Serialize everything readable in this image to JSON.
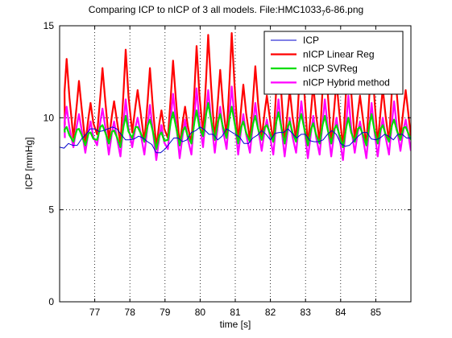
{
  "chart_data": {
    "type": "line",
    "title": "Comparing ICP to nICP of 3 all models. File:HMC1033",
    "title_subscript": "7",
    "title_suffix": "6-86.png",
    "xlabel": "time [s]",
    "ylabel": "ICP [mmHg]",
    "xlim": [
      76,
      86
    ],
    "ylim": [
      0,
      15
    ],
    "xticks": [
      "77",
      "78",
      "79",
      "80",
      "81",
      "82",
      "83",
      "84",
      "85"
    ],
    "yticks": [
      "0",
      "5",
      "10",
      "15"
    ],
    "grid": "dotted",
    "legend_position": "top-right",
    "series": [
      {
        "name": "ICP",
        "color": "#0000cc",
        "x": [
          76.0,
          76.25,
          76.5,
          76.75,
          77.0,
          77.25,
          77.5,
          77.75,
          78.0,
          78.25,
          78.5,
          78.75,
          79.0,
          79.25,
          79.5,
          79.75,
          80.0,
          80.25,
          80.5,
          80.75,
          81.0,
          81.25,
          81.5,
          81.75,
          82.0,
          82.25,
          82.5,
          82.75,
          83.0,
          83.25,
          83.5,
          83.75,
          84.0,
          84.25,
          84.5,
          84.75,
          85.0,
          85.25,
          85.5,
          85.75,
          86.0
        ],
        "y": [
          8.4,
          8.6,
          8.5,
          9.1,
          9.4,
          9.3,
          9.5,
          9.1,
          8.8,
          9.0,
          8.7,
          8.1,
          8.3,
          8.9,
          8.7,
          9.2,
          9.5,
          9.1,
          8.8,
          9.4,
          9.1,
          8.6,
          8.9,
          9.3,
          8.8,
          9.2,
          9.4,
          8.9,
          9.1,
          8.7,
          8.8,
          9.3,
          8.6,
          8.5,
          9.0,
          9.2,
          8.8,
          9.1,
          8.8,
          9.1,
          8.9
        ]
      },
      {
        "name": "nICP Linear Reg",
        "color": "#ff0000",
        "peaks_x": [
          76.2,
          76.55,
          76.88,
          77.22,
          77.55,
          77.88,
          78.22,
          78.57,
          78.9,
          79.23,
          79.57,
          79.9,
          80.23,
          80.57,
          80.9,
          81.23,
          81.57,
          81.9,
          82.23,
          82.55,
          82.88,
          83.22,
          83.55,
          83.88,
          84.22,
          84.55,
          84.88,
          85.2,
          85.52,
          85.85
        ],
        "peaks_y": [
          13.2,
          12.0,
          10.8,
          12.7,
          10.9,
          13.7,
          11.5,
          12.7,
          10.4,
          13.1,
          10.6,
          13.9,
          14.5,
          12.6,
          14.6,
          11.8,
          12.8,
          11.2,
          14.0,
          11.5,
          14.3,
          11.8,
          14.1,
          12.0,
          14.4,
          11.2,
          13.6,
          11.6,
          13.8,
          11.5
        ],
        "troughs_y": [
          9.0,
          8.9,
          8.6,
          9.1,
          8.8,
          8.6,
          9.2,
          8.7,
          8.4,
          8.9,
          8.5,
          8.6,
          9.1,
          8.8,
          9.0,
          8.7,
          8.8,
          8.9,
          8.7,
          8.6,
          8.8,
          8.5,
          8.7,
          8.6,
          8.4,
          8.8,
          8.5,
          8.6,
          8.7,
          8.9
        ]
      },
      {
        "name": "nICP SVReg",
        "color": "#00dd00",
        "peaks_x": [
          76.2,
          76.55,
          76.88,
          77.22,
          77.55,
          77.88,
          78.22,
          78.57,
          78.9,
          79.23,
          79.57,
          79.9,
          80.23,
          80.57,
          80.9,
          81.23,
          81.57,
          81.9,
          82.23,
          82.55,
          82.88,
          83.22,
          83.55,
          83.88,
          84.22,
          84.55,
          84.88,
          85.2,
          85.52,
          85.85
        ],
        "peaks_y": [
          9.5,
          9.4,
          9.2,
          9.6,
          9.3,
          10.1,
          9.5,
          9.9,
          9.2,
          10.3,
          9.5,
          10.4,
          10.8,
          10.2,
          10.6,
          9.8,
          10.1,
          9.6,
          10.3,
          9.8,
          10.2,
          9.7,
          10.1,
          9.6,
          10.0,
          9.5,
          10.2,
          9.6,
          9.9,
          9.5
        ],
        "troughs_y": [
          8.6,
          8.7,
          8.5,
          8.8,
          8.6,
          8.4,
          8.9,
          8.7,
          8.3,
          8.8,
          8.5,
          8.6,
          9.0,
          8.8,
          8.9,
          8.6,
          8.7,
          8.8,
          8.7,
          8.6,
          8.7,
          8.5,
          8.6,
          8.6,
          8.4,
          8.7,
          8.5,
          8.6,
          8.7,
          8.8
        ]
      },
      {
        "name": "nICP Hybrid method",
        "color": "#ff00ff",
        "peaks_x": [
          76.2,
          76.55,
          76.88,
          77.22,
          77.55,
          77.88,
          78.22,
          78.57,
          78.9,
          79.23,
          79.57,
          79.9,
          80.23,
          80.57,
          80.9,
          81.23,
          81.57,
          81.9,
          82.23,
          82.55,
          82.88,
          83.22,
          83.55,
          83.88,
          84.22,
          84.55,
          84.88,
          85.2,
          85.52,
          85.85
        ],
        "peaks_y": [
          10.6,
          10.2,
          9.8,
          10.5,
          9.8,
          11.0,
          10.0,
          10.7,
          9.6,
          11.3,
          9.9,
          11.6,
          11.5,
          10.6,
          11.7,
          10.2,
          10.8,
          9.9,
          11.0,
          10.0,
          10.9,
          10.1,
          11.0,
          10.0,
          11.2,
          9.8,
          10.8,
          10.0,
          10.9,
          9.9
        ],
        "troughs_y": [
          8.3,
          8.4,
          8.1,
          8.5,
          8.0,
          7.9,
          8.4,
          8.0,
          7.7,
          8.3,
          7.8,
          8.0,
          8.4,
          8.1,
          8.3,
          8.0,
          8.1,
          8.2,
          8.0,
          7.9,
          8.1,
          7.8,
          8.0,
          7.9,
          7.7,
          8.1,
          7.8,
          7.9,
          8.0,
          8.2
        ]
      }
    ]
  }
}
